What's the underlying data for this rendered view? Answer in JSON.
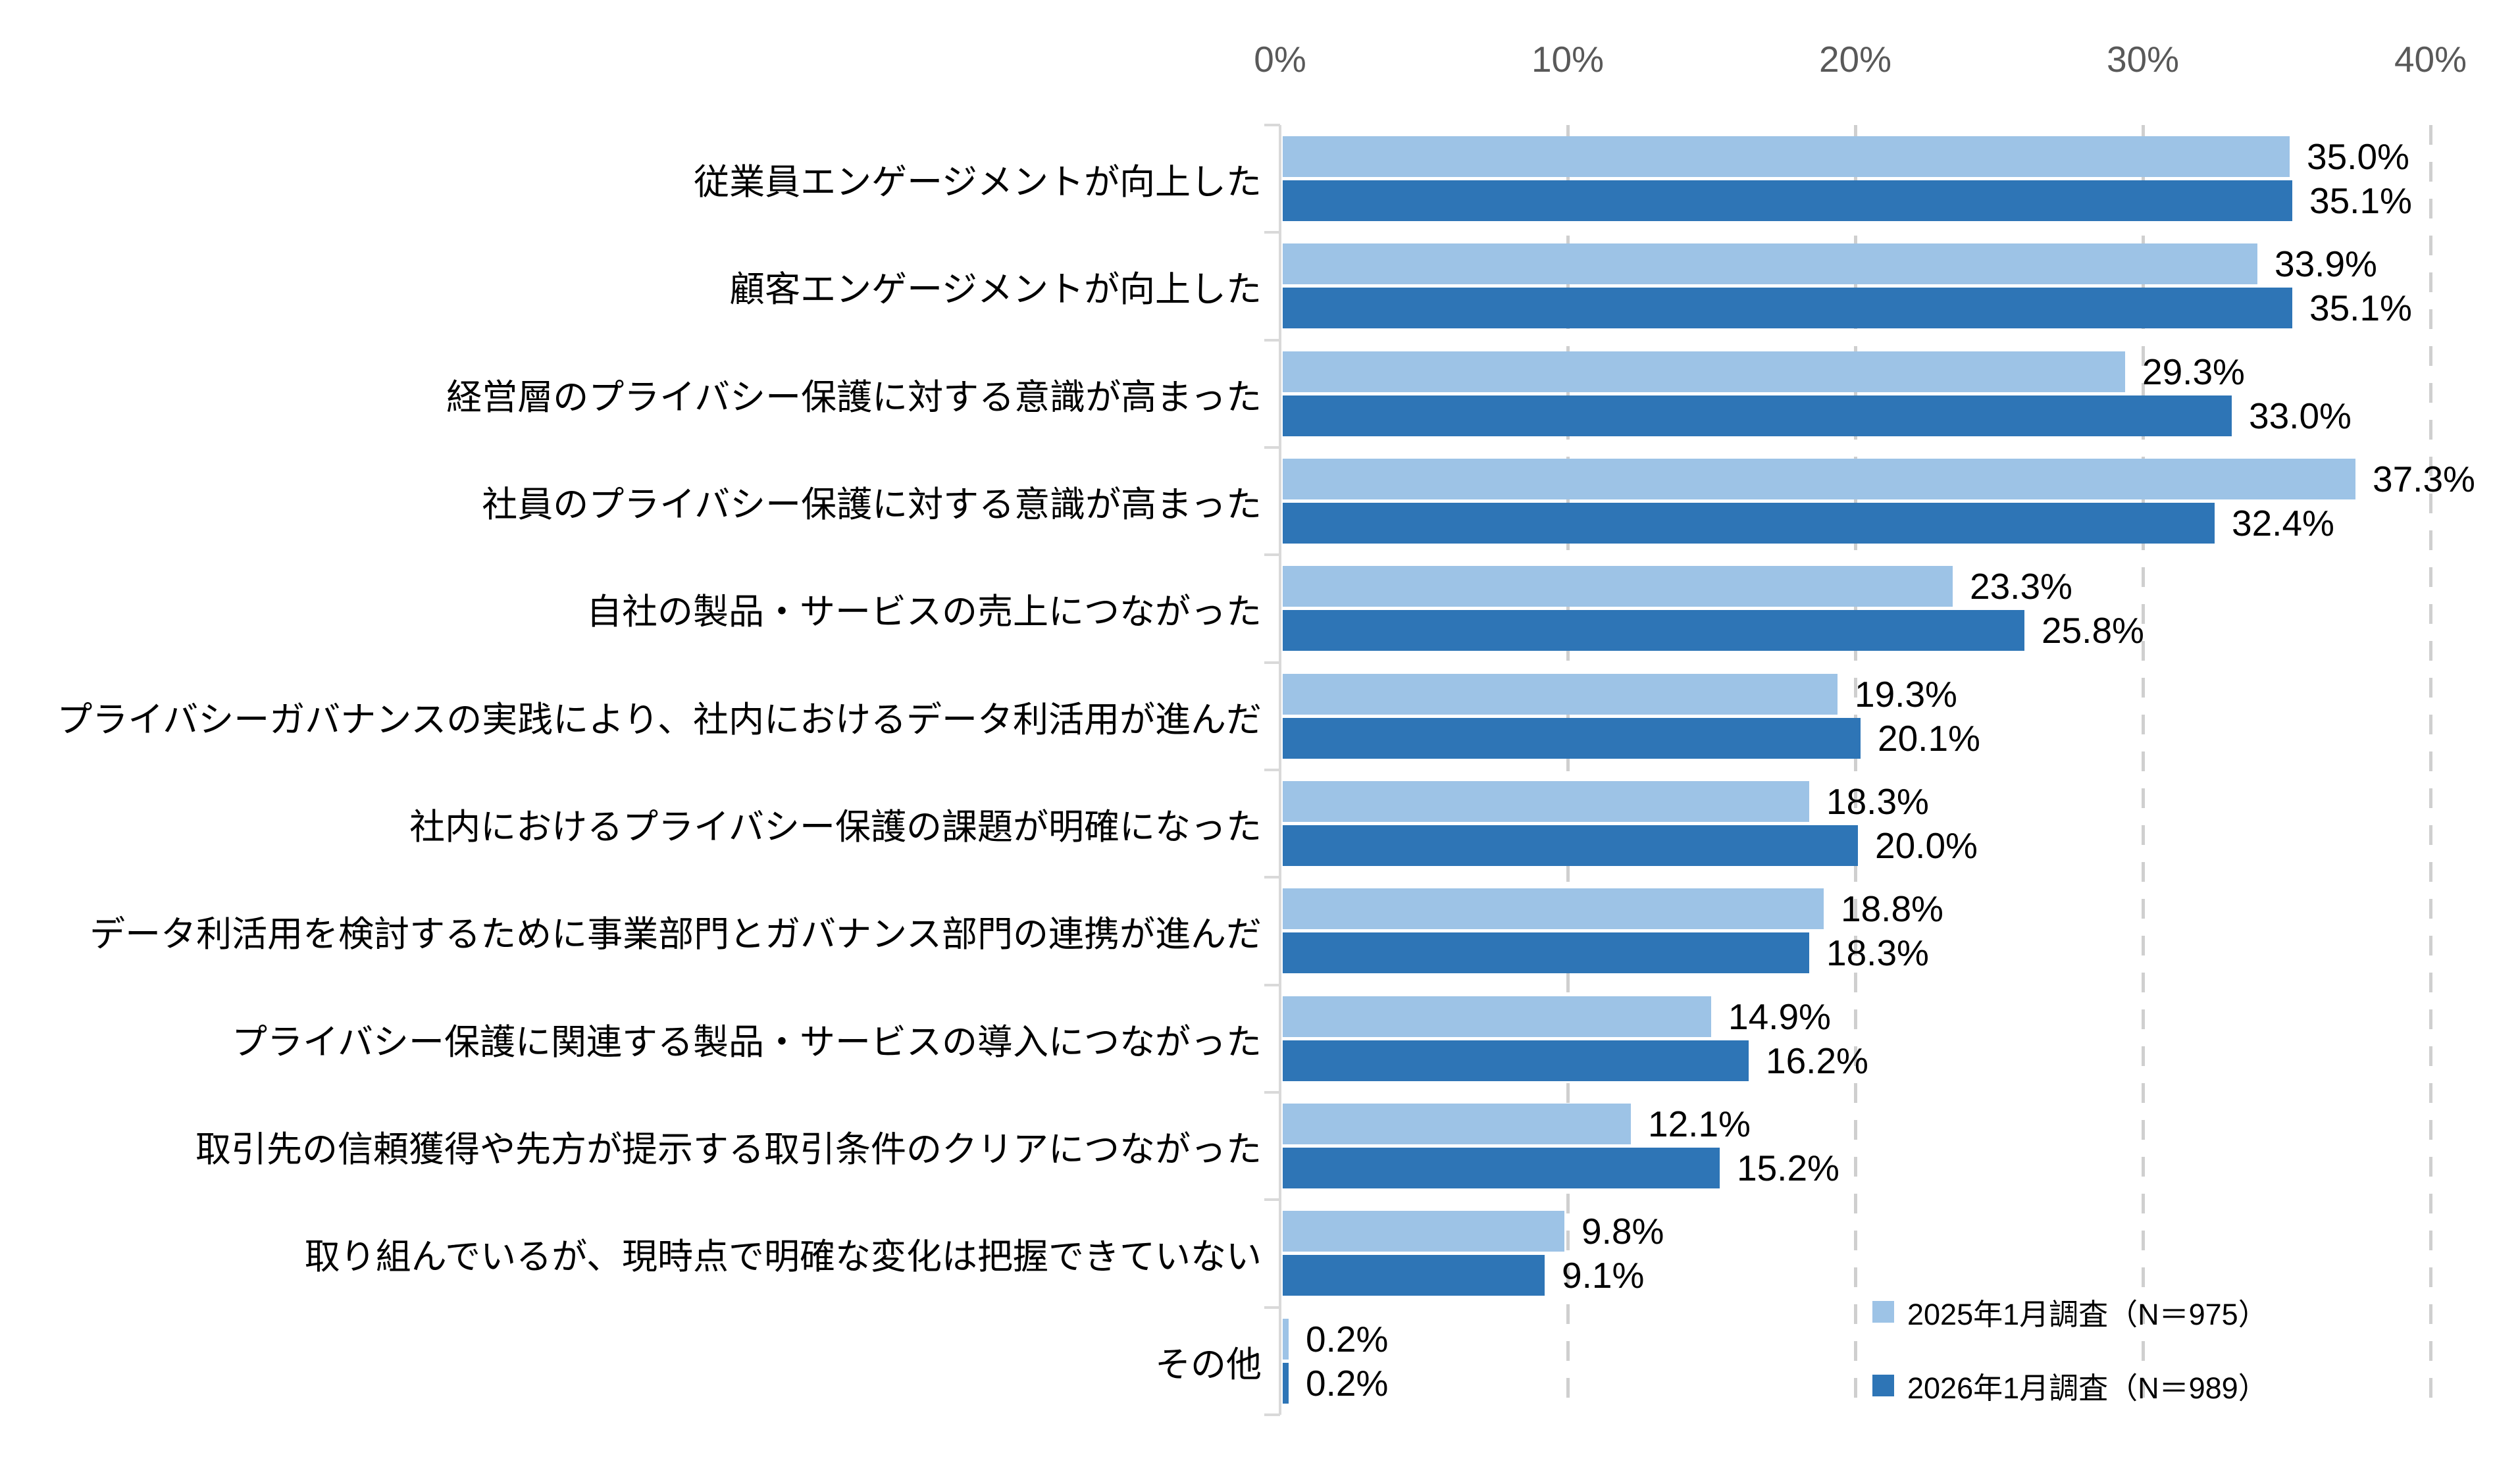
{
  "chart_data": {
    "type": "bar",
    "orientation": "horizontal",
    "title": "",
    "x_axis": {
      "unit": "%",
      "min": 0,
      "max": 40,
      "tick_interval": 10,
      "tick_labels": [
        "0%",
        "10%",
        "20%",
        "30%",
        "40%"
      ],
      "position": "top"
    },
    "grid": "dashed-vertical",
    "legend_position": "bottom-right",
    "categories": [
      "従業員エンゲージメントが向上した",
      "顧客エンゲージメントが向上した",
      "経営層のプライバシー保護に対する意識が高まった",
      "社員のプライバシー保護に対する意識が高まった",
      "自社の製品・サービスの売上につながった",
      "プライバシーガバナンスの実践により、社内におけるデータ利活用が進んだ",
      "社内におけるプライバシー保護の課題が明確になった",
      "データ利活用を検討するために事業部門とガバナンス部門の連携が進んだ",
      "プライバシー保護に関連する製品・サービスの導入につながった",
      "取引先の信頼獲得や先方が提示する取引条件のクリアにつながった",
      "取り組んでいるが、現時点で明確な変化は把握できていない",
      "その他"
    ],
    "series": [
      {
        "name": "2025年1月調査（N＝975）",
        "color": "#9DC3E6",
        "values": [
          35.0,
          33.9,
          29.3,
          37.3,
          23.3,
          19.3,
          18.3,
          18.8,
          14.9,
          12.1,
          9.8,
          0.2
        ]
      },
      {
        "name": "2026年1月調査（N＝989）",
        "color": "#2E75B6",
        "values": [
          35.1,
          35.1,
          33.0,
          32.4,
          25.8,
          20.1,
          20.0,
          18.3,
          16.2,
          15.2,
          9.1,
          0.2
        ]
      }
    ]
  },
  "legend": {
    "items": [
      {
        "label": "2025年1月調査（N＝975）",
        "swatch_color": "#9DC3E6"
      },
      {
        "label": "2026年1月調査（N＝989）",
        "swatch_color": "#2E75B6"
      }
    ]
  },
  "style": {
    "background": "#FFFFFF",
    "axis_label_color": "#595959",
    "text_color": "#000000",
    "gridline_color": "#CFCFCF",
    "axis_line_color": "#D9D9D9"
  }
}
